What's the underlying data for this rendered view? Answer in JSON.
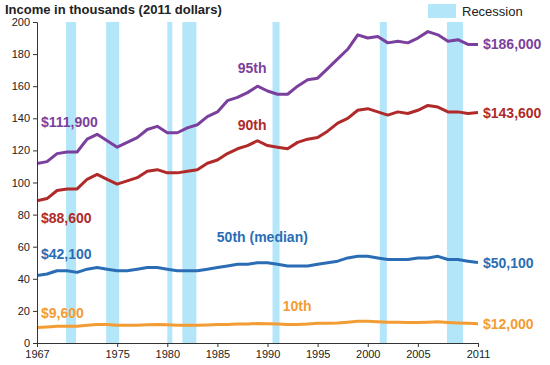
{
  "chart_data": {
    "type": "line",
    "title": "Income in thousands (2011 dollars)",
    "x": [
      1967,
      1968,
      1969,
      1970,
      1971,
      1972,
      1973,
      1974,
      1975,
      1976,
      1977,
      1978,
      1979,
      1980,
      1981,
      1982,
      1983,
      1984,
      1985,
      1986,
      1987,
      1988,
      1989,
      1990,
      1991,
      1992,
      1993,
      1994,
      1995,
      1996,
      1997,
      1998,
      1999,
      2000,
      2001,
      2002,
      2003,
      2004,
      2005,
      2006,
      2007,
      2008,
      2009,
      2010,
      2011
    ],
    "series": [
      {
        "name": "95th",
        "color": "#7b3f9e",
        "values": [
          111.9,
          113,
          118,
          119,
          119,
          127,
          130,
          126,
          122,
          125,
          128,
          133,
          135,
          131,
          131,
          134,
          136,
          141,
          144,
          151,
          153,
          156,
          160,
          157,
          155,
          155,
          160,
          164,
          165,
          171,
          177,
          183,
          192,
          190,
          191,
          187,
          188,
          187,
          190,
          194,
          192,
          188,
          189,
          186,
          186.0
        ]
      },
      {
        "name": "90th",
        "color": "#b02a2a",
        "values": [
          88.6,
          90,
          95,
          96,
          96,
          102,
          105,
          102,
          99,
          101,
          103,
          107,
          108,
          106,
          106,
          107,
          108,
          112,
          114,
          118,
          121,
          123,
          126,
          123,
          122,
          121,
          125,
          127,
          128,
          132,
          137,
          140,
          145,
          146,
          144,
          142,
          144,
          143,
          145,
          148,
          147,
          144,
          144,
          143,
          143.6
        ]
      },
      {
        "name": "50th (median)",
        "color": "#2a6db5",
        "values": [
          42.1,
          43,
          45,
          45,
          44,
          46,
          47,
          46,
          45,
          45,
          46,
          47,
          47,
          46,
          45,
          45,
          45,
          46,
          47,
          48,
          49,
          49,
          50,
          50,
          49,
          48,
          48,
          48,
          49,
          50,
          51,
          53,
          54,
          54,
          53,
          52,
          52,
          52,
          53,
          53,
          54,
          52,
          52,
          51,
          50.1
        ]
      },
      {
        "name": "10th",
        "color": "#f39c33",
        "values": [
          9.6,
          10,
          10.5,
          10.5,
          10.5,
          11,
          11.5,
          11.5,
          11,
          11,
          11,
          11.3,
          11.5,
          11.3,
          11,
          11,
          11,
          11.2,
          11.5,
          11.5,
          11.8,
          11.8,
          12.2,
          12,
          11.8,
          11.5,
          11.5,
          11.8,
          12.3,
          12.3,
          12.5,
          13,
          13.5,
          13.5,
          13.3,
          13,
          13,
          12.8,
          12.8,
          13,
          13.2,
          12.8,
          12.5,
          12.3,
          12.0
        ]
      }
    ],
    "xlim": [
      1967,
      2011
    ],
    "xticks": [
      1967,
      1975,
      1980,
      1985,
      1990,
      1995,
      2000,
      2005,
      2011
    ],
    "ylim": [
      0,
      200
    ],
    "yticks": [
      0,
      20,
      40,
      60,
      80,
      100,
      120,
      140,
      160,
      180,
      200
    ],
    "grid": false,
    "legend": "upper right",
    "recessions": {
      "name": "Recession",
      "color": "#b3e6f8",
      "periods": [
        [
          1969.9,
          1970.9
        ],
        [
          1973.9,
          1975.2
        ],
        [
          1980.0,
          1980.5
        ],
        [
          1981.5,
          1982.9
        ],
        [
          1990.5,
          1991.2
        ],
        [
          2001.2,
          2001.9
        ],
        [
          2007.9,
          2009.5
        ]
      ]
    },
    "annotations": [
      {
        "text": "$111,900",
        "x": 1967,
        "y": 111.9,
        "color": "#7b3f9e"
      },
      {
        "text": "$88,600",
        "x": 1967,
        "y": 88.6,
        "color": "#b02a2a"
      },
      {
        "text": "$42,100",
        "x": 1967,
        "y": 42.1,
        "color": "#2a6db5"
      },
      {
        "text": "$9,600",
        "x": 1967,
        "y": 9.6,
        "color": "#f39c33"
      },
      {
        "text": "$186,000",
        "x": 2011,
        "y": 186.0,
        "color": "#7b3f9e"
      },
      {
        "text": "$143,600",
        "x": 2011,
        "y": 143.6,
        "color": "#b02a2a"
      },
      {
        "text": "$50,100",
        "x": 2011,
        "y": 50.1,
        "color": "#2a6db5"
      },
      {
        "text": "$12,000",
        "x": 2011,
        "y": 12.0,
        "color": "#f39c33"
      }
    ]
  }
}
